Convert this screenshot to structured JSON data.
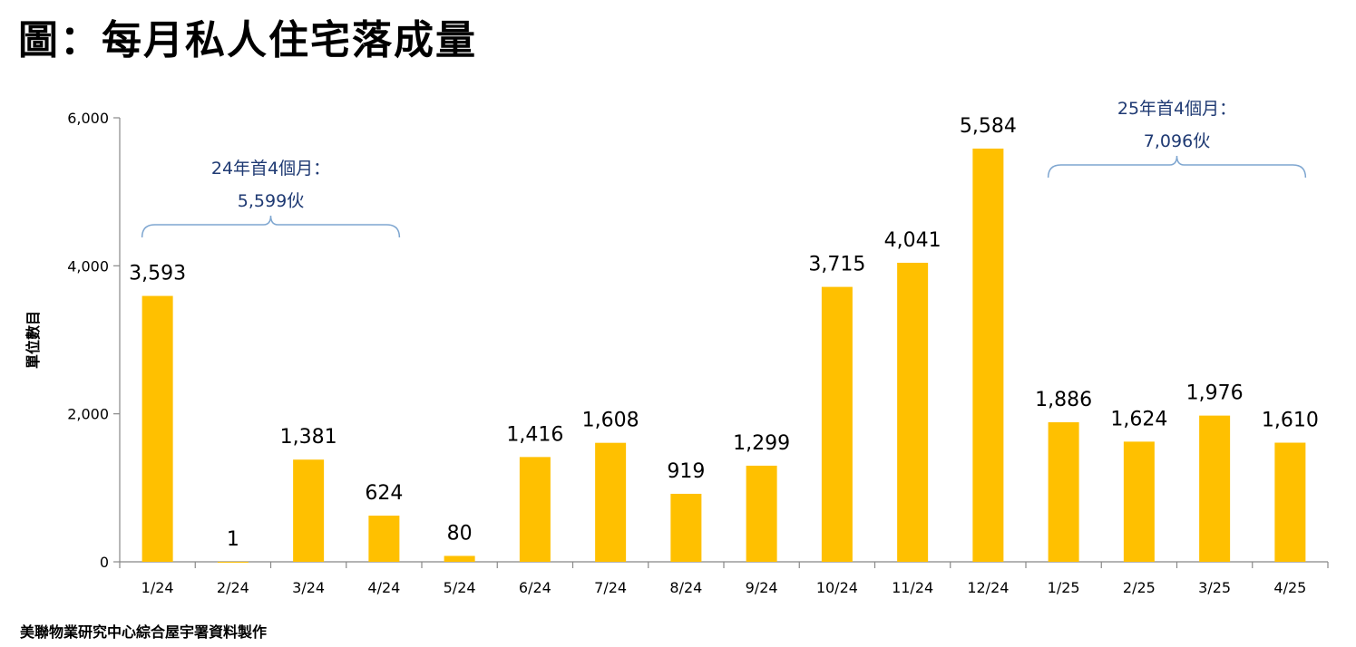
{
  "title": "圖：每月私人住宅落成量",
  "source": "美聯物業研究中心綜合屋宇署資料製作",
  "chart_data": {
    "type": "bar",
    "ylabel": "單位數目",
    "ylim": [
      0,
      6000
    ],
    "yticks": [
      "0",
      "2,000",
      "4,000",
      "6,000"
    ],
    "ytick_values": [
      0,
      2000,
      4000,
      6000
    ],
    "categories": [
      "1/24",
      "2/24",
      "3/24",
      "4/24",
      "5/24",
      "6/24",
      "7/24",
      "8/24",
      "9/24",
      "10/24",
      "11/24",
      "12/24",
      "1/25",
      "2/25",
      "3/25",
      "4/25"
    ],
    "values": [
      3593,
      1,
      1381,
      624,
      80,
      1416,
      1608,
      919,
      1299,
      3715,
      4041,
      5584,
      1886,
      1624,
      1976,
      1610
    ],
    "value_labels": [
      "3,593",
      "1",
      "1,381",
      "624",
      "80",
      "1,416",
      "1,608",
      "919",
      "1,299",
      "3,715",
      "4,041",
      "5,584",
      "1,886",
      "1,624",
      "1,976",
      "1,610"
    ],
    "bar_color": "#FFC000",
    "annotations": [
      {
        "line1": "24年首4個月：",
        "line2": "5,599伙",
        "from_index": 0,
        "to_index": 3
      },
      {
        "line1": "25年首4個月：",
        "line2": "7,096伙",
        "from_index": 12,
        "to_index": 15
      }
    ],
    "annotation_color": "#1F3A73",
    "bracket_color": "#7EA6D0"
  }
}
